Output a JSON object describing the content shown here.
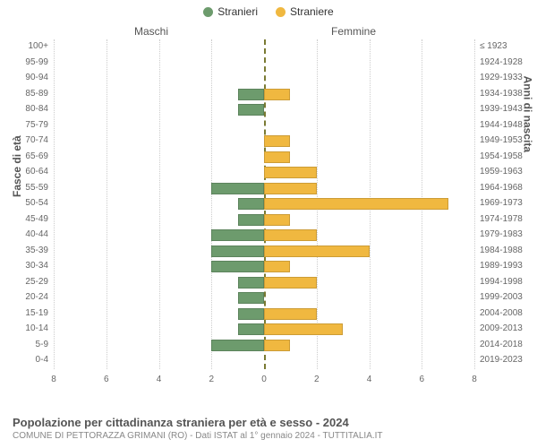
{
  "legend": {
    "male": {
      "label": "Stranieri",
      "color": "#6d9b6d"
    },
    "female": {
      "label": "Straniere",
      "color": "#f0b840"
    }
  },
  "top_labels": {
    "left": "Maschi",
    "right": "Femmine"
  },
  "axis_titles": {
    "left": "Fasce di età",
    "right": "Anni di nascita"
  },
  "chart": {
    "type": "population-pyramid",
    "x_max": 8,
    "x_ticks": [
      8,
      6,
      4,
      2,
      0,
      2,
      4,
      6,
      8
    ],
    "grid_color": "#cccccc",
    "zero_line_color": "#7a7a33",
    "bg": "#ffffff",
    "rows": [
      {
        "age": "100+",
        "birth": "≤ 1923",
        "m": 0,
        "f": 0
      },
      {
        "age": "95-99",
        "birth": "1924-1928",
        "m": 0,
        "f": 0
      },
      {
        "age": "90-94",
        "birth": "1929-1933",
        "m": 0,
        "f": 0
      },
      {
        "age": "85-89",
        "birth": "1934-1938",
        "m": 1,
        "f": 1
      },
      {
        "age": "80-84",
        "birth": "1939-1943",
        "m": 1,
        "f": 0
      },
      {
        "age": "75-79",
        "birth": "1944-1948",
        "m": 0,
        "f": 0
      },
      {
        "age": "70-74",
        "birth": "1949-1953",
        "m": 0,
        "f": 1
      },
      {
        "age": "65-69",
        "birth": "1954-1958",
        "m": 0,
        "f": 1
      },
      {
        "age": "60-64",
        "birth": "1959-1963",
        "m": 0,
        "f": 2
      },
      {
        "age": "55-59",
        "birth": "1964-1968",
        "m": 2,
        "f": 2
      },
      {
        "age": "50-54",
        "birth": "1969-1973",
        "m": 1,
        "f": 7
      },
      {
        "age": "45-49",
        "birth": "1974-1978",
        "m": 1,
        "f": 1
      },
      {
        "age": "40-44",
        "birth": "1979-1983",
        "m": 2,
        "f": 2
      },
      {
        "age": "35-39",
        "birth": "1984-1988",
        "m": 2,
        "f": 4
      },
      {
        "age": "30-34",
        "birth": "1989-1993",
        "m": 2,
        "f": 1
      },
      {
        "age": "25-29",
        "birth": "1994-1998",
        "m": 1,
        "f": 2
      },
      {
        "age": "20-24",
        "birth": "1999-2003",
        "m": 1,
        "f": 0
      },
      {
        "age": "15-19",
        "birth": "2004-2008",
        "m": 1,
        "f": 2
      },
      {
        "age": "10-14",
        "birth": "2009-2013",
        "m": 1,
        "f": 3
      },
      {
        "age": "5-9",
        "birth": "2014-2018",
        "m": 2,
        "f": 1
      },
      {
        "age": "0-4",
        "birth": "2019-2023",
        "m": 0,
        "f": 0
      }
    ]
  },
  "footer": {
    "title": "Popolazione per cittadinanza straniera per età e sesso - 2024",
    "subtitle": "COMUNE DI PETTORAZZA GRIMANI (RO) - Dati ISTAT al 1° gennaio 2024 - TUTTITALIA.IT"
  }
}
